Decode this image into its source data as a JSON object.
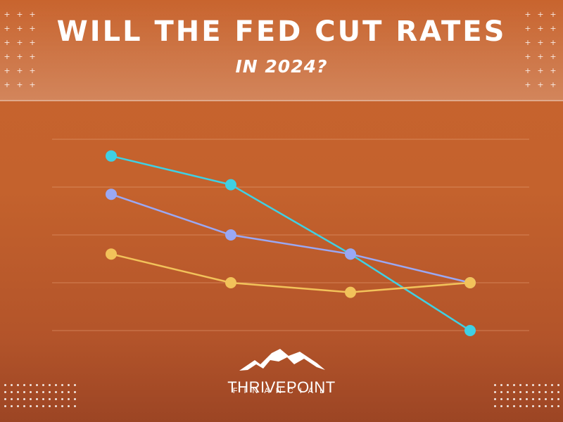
{
  "header": {
    "title": "WILL THE FED CUT RATES",
    "subtitle": "IN 2024?"
  },
  "decor": {
    "plus_glyph": "+"
  },
  "brand": {
    "logo_icon": "mountain-icon",
    "name": "THRIVEPOINT",
    "tagline": "FINANCIAL"
  },
  "colors": {
    "background": "#c4622d",
    "grid": "#e8a27a",
    "series_teal": "#3fd0e4",
    "series_purple": "#9aa8f4",
    "series_yellow": "#f2c25a"
  },
  "chart_data": {
    "type": "line",
    "x": [
      1,
      2,
      3,
      4
    ],
    "ylim": [
      0,
      4.5
    ],
    "grid": true,
    "series": [
      {
        "color": "#3fd0e4",
        "values": [
          3.65,
          3.05,
          1.6,
          0.0
        ]
      },
      {
        "color": "#9aa8f4",
        "values": [
          2.85,
          2.0,
          1.6,
          1.0
        ]
      },
      {
        "color": "#f2c25a",
        "values": [
          1.6,
          1.0,
          0.8,
          1.0
        ]
      }
    ],
    "gridlines": [
      0,
      1,
      2,
      3,
      4
    ]
  }
}
